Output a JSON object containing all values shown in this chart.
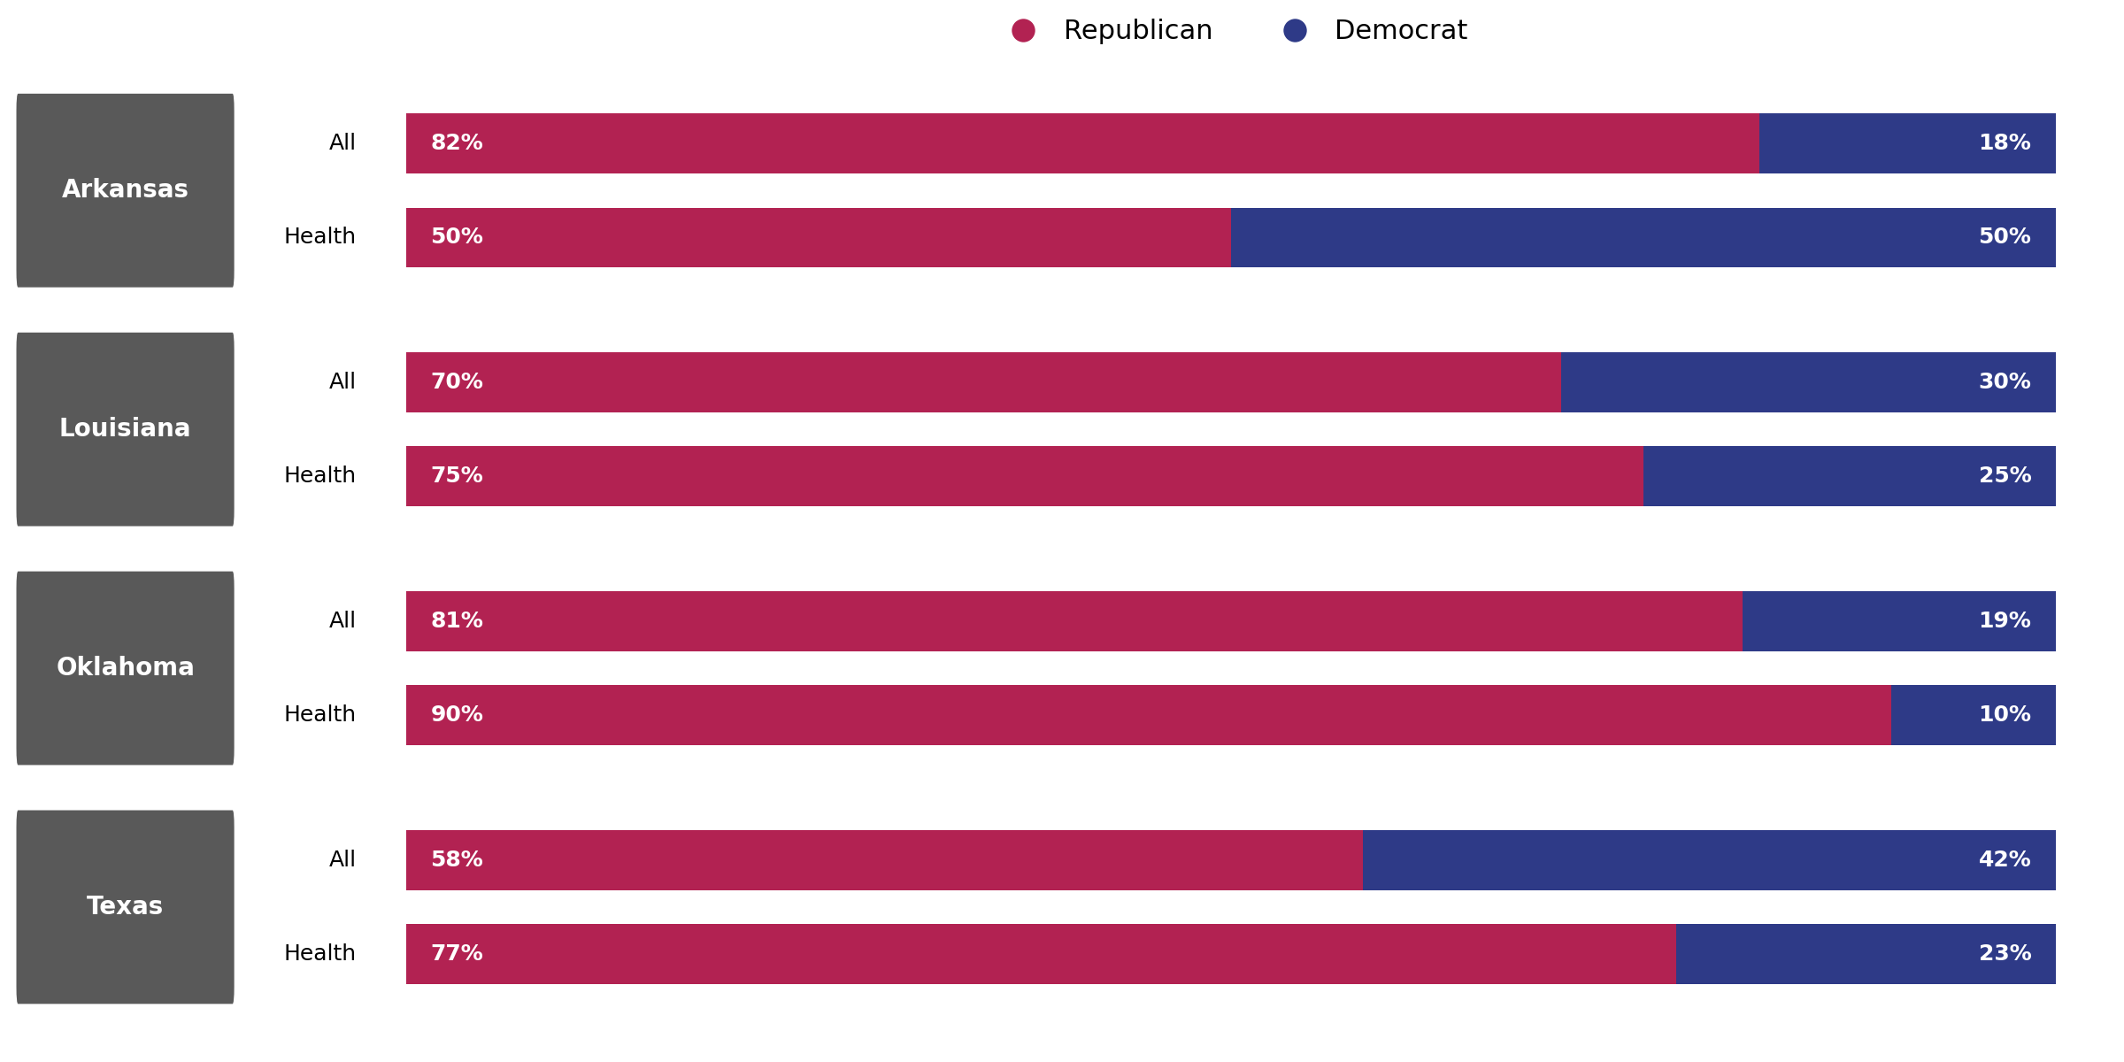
{
  "states": [
    "Arkansas",
    "Louisiana",
    "Oklahoma",
    "Texas"
  ],
  "categories": [
    "All",
    "Health"
  ],
  "republican_color": "#B22252",
  "democrat_color": "#2E3A87",
  "state_label_bg": "#595959",
  "state_label_color": "#FFFFFF",
  "bar_text_color": "#FFFFFF",
  "background_color": "#FFFFFF",
  "data": {
    "Arkansas": {
      "All": [
        82,
        18
      ],
      "Health": [
        50,
        50
      ]
    },
    "Louisiana": {
      "All": [
        70,
        30
      ],
      "Health": [
        75,
        25
      ]
    },
    "Oklahoma": {
      "All": [
        81,
        19
      ],
      "Health": [
        90,
        10
      ]
    },
    "Texas": {
      "All": [
        58,
        42
      ],
      "Health": [
        77,
        23
      ]
    }
  },
  "bar_height": 0.35,
  "figsize": [
    24.0,
    12.0
  ],
  "dpi": 100,
  "legend_fontsize": 22,
  "label_fontsize": 18,
  "bar_text_fontsize": 18,
  "state_label_fontsize": 20
}
